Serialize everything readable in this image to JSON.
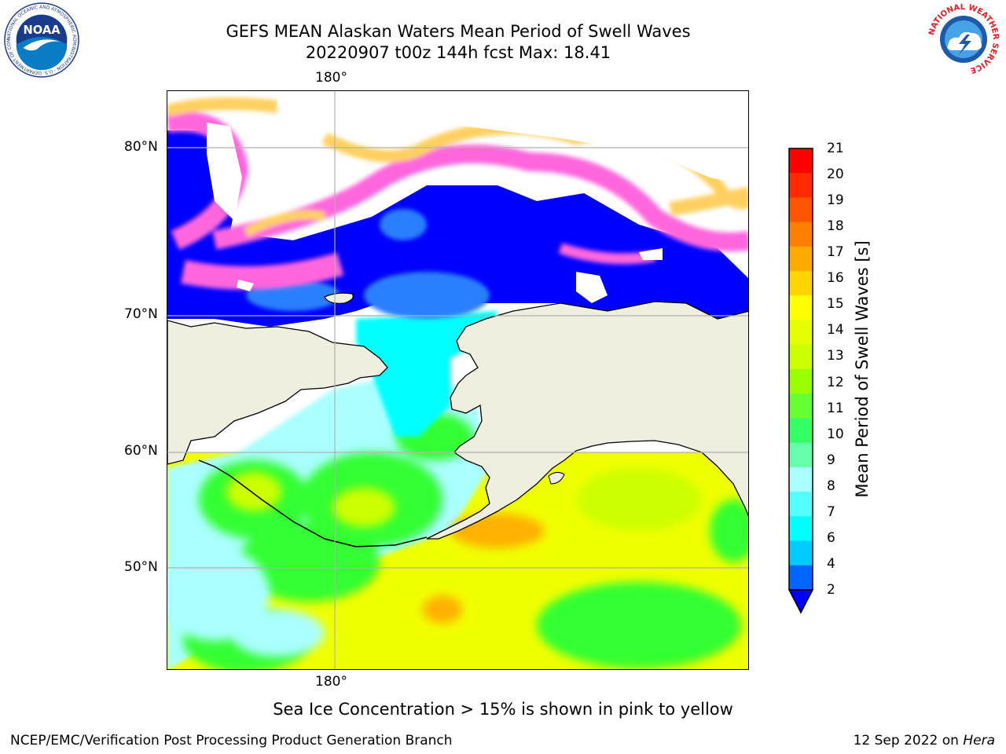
{
  "title_line1": "GEFS MEAN Alaskan Waters Mean Period of Swell Waves",
  "title_line2": "20220907 t00z 144h fcst   Max: 18.41",
  "axes": {
    "lon_top": "180°",
    "lon_bottom": "180°",
    "lat_labels": [
      "80°N",
      "70°N",
      "60°N",
      "50°N"
    ]
  },
  "colorbar": {
    "label": "Mean Period of Swell Waves [s]",
    "ticks": [
      "21",
      "20",
      "19",
      "18",
      "17",
      "16",
      "15",
      "14",
      "13",
      "12",
      "11",
      "10",
      "9",
      "8",
      "7",
      "6",
      "4",
      "2"
    ],
    "colors": [
      "#ff0000",
      "#ff2a00",
      "#ff5500",
      "#ff8000",
      "#ffaa00",
      "#ffd400",
      "#ffff00",
      "#e6ff00",
      "#ccff00",
      "#99ff00",
      "#66ff33",
      "#33ff66",
      "#66ffaa",
      "#aaffff",
      "#55ffff",
      "#00ffff",
      "#00ccff",
      "#0066ff",
      "#0000ff"
    ]
  },
  "colors": {
    "land": "#efefe0",
    "deep_blue": "#0000ff",
    "mid_blue": "#2a7fff",
    "cyan": "#00ffff",
    "light_cyan": "#aaffff",
    "green": "#33ff33",
    "yellow_green": "#ccff00",
    "yellow": "#f0ff00",
    "orange": "#ffb000",
    "ice_pink": "#ff66dd",
    "ice_yellow": "#ffd060"
  },
  "ice_note": "Sea Ice Concentration > 15% is shown in pink to yellow",
  "footer": {
    "left": "NCEP/EMC/Verification Post Processing Product Generation Branch",
    "right_date": "12 Sep 2022 on ",
    "right_host": "Hera"
  },
  "logos": {
    "noaa_text": "NOAA",
    "noaa_ring": "NATIONAL OCEANIC AND ATMOSPHERIC ADMINISTRATION · U.S. DEPARTMENT OF COMMERCE",
    "nws_ring": "NATIONAL WEATHER SERVICE"
  }
}
